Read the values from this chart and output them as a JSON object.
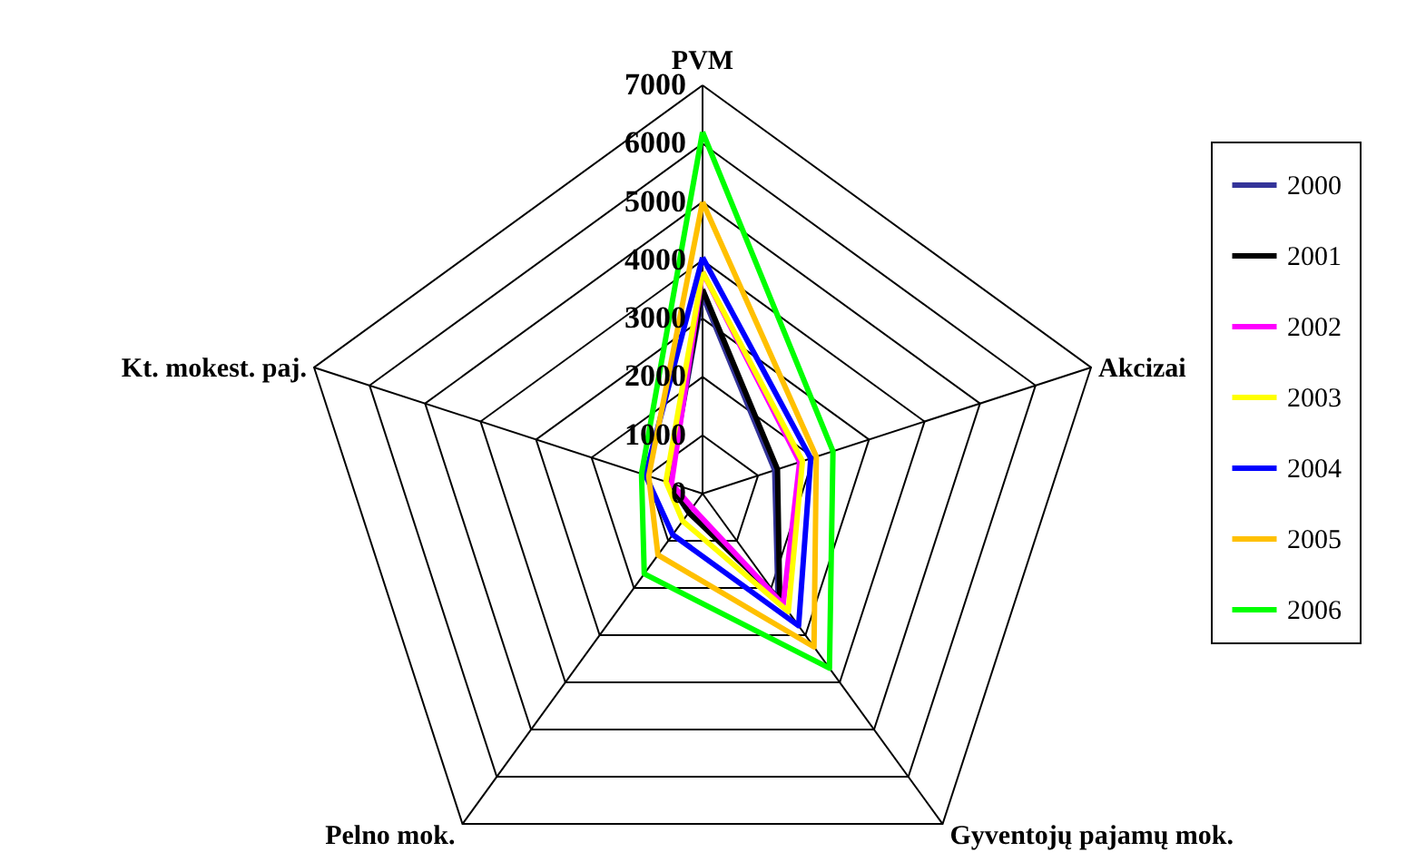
{
  "chart_data": {
    "type": "radar",
    "categories": [
      "PVM",
      "Akcizai",
      "Gyventojų pajamų mok.",
      "Pelno mok.",
      "Kt. mokest. paj."
    ],
    "series": [
      {
        "name": "2000",
        "color": "#333399",
        "values": [
          3400,
          1300,
          2200,
          400,
          600
        ]
      },
      {
        "name": "2001",
        "color": "#000000",
        "values": [
          3500,
          1350,
          2250,
          400,
          600
        ]
      },
      {
        "name": "2002",
        "color": "#ff00ff",
        "values": [
          3800,
          1750,
          2350,
          300,
          560
        ]
      },
      {
        "name": "2003",
        "color": "#ffff00",
        "values": [
          3800,
          1800,
          2500,
          580,
          660
        ]
      },
      {
        "name": "2004",
        "color": "#0000ff",
        "values": [
          4050,
          1950,
          2800,
          870,
          1030
        ]
      },
      {
        "name": "2005",
        "color": "#ffc000",
        "values": [
          5000,
          2050,
          3250,
          1300,
          970
        ]
      },
      {
        "name": "2006",
        "color": "#00ff00",
        "values": [
          6200,
          2350,
          3700,
          1700,
          1100
        ]
      }
    ],
    "ylim": [
      0,
      7000
    ],
    "yticks": [
      0,
      1000,
      2000,
      3000,
      4000,
      5000,
      6000,
      7000
    ],
    "grid": true,
    "legend": "right"
  }
}
